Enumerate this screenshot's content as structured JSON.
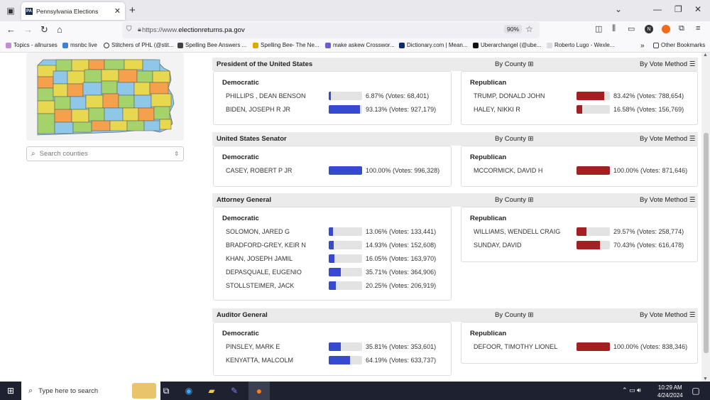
{
  "browser": {
    "tab_title": "Pennsylvania Elections",
    "url_prefix": "https://www.",
    "url_domain": "electionreturns.pa.gov",
    "zoom": "90%",
    "bookmarks": [
      "Topics - allnurses",
      "msnbc live",
      "Stitchers of PHL (@stit...",
      "Spelling Bee Answers ...",
      "Spelling Bee- The Ne...",
      "make askew Crosswor...",
      "Dictionary.com | Mean...",
      "Uberarchangel (@ube...",
      "Roberto Lugo - Wexle...",
      "Other Bookmarks"
    ]
  },
  "sidebar": {
    "search_placeholder": "Search counties"
  },
  "labels": {
    "by_county": "By County",
    "by_vote_method": "By Vote Method",
    "democratic": "Democratic",
    "republican": "Republican"
  },
  "races": [
    {
      "title": "President of the United States",
      "dem": [
        {
          "name": "PHILLIPS , DEAN BENSON",
          "pct": 6.87,
          "text": "6.87% (Votes: 68,401)"
        },
        {
          "name": "BIDEN, JOSEPH R JR",
          "pct": 93.13,
          "text": "93.13% (Votes: 927,179)"
        }
      ],
      "rep": [
        {
          "name": "TRUMP, DONALD JOHN",
          "pct": 83.42,
          "text": "83.42% (Votes: 788,654)"
        },
        {
          "name": "HALEY, NIKKI R",
          "pct": 16.58,
          "text": "16.58% (Votes: 156,769)"
        }
      ]
    },
    {
      "title": "United States Senator",
      "dem": [
        {
          "name": "CASEY, ROBERT P JR",
          "pct": 100,
          "text": "100.00% (Votes: 996,328)"
        }
      ],
      "rep": [
        {
          "name": "MCCORMICK, DAVID H",
          "pct": 100,
          "text": "100.00% (Votes: 871,646)"
        }
      ]
    },
    {
      "title": "Attorney General",
      "dem": [
        {
          "name": "SOLOMON, JARED G",
          "pct": 13.06,
          "text": "13.06% (Votes: 133,441)"
        },
        {
          "name": "BRADFORD-GREY, KEIR N",
          "pct": 14.93,
          "text": "14.93% (Votes: 152,608)"
        },
        {
          "name": "KHAN, JOSEPH JAMIL",
          "pct": 16.05,
          "text": "16.05% (Votes: 163,970)"
        },
        {
          "name": "DEPASQUALE, EUGENIO",
          "pct": 35.71,
          "text": "35.71% (Votes: 364,906)"
        },
        {
          "name": "STOLLSTEIMER, JACK",
          "pct": 20.25,
          "text": "20.25% (Votes: 206,919)"
        }
      ],
      "rep": [
        {
          "name": "WILLIAMS, WENDELL CRAIG",
          "pct": 29.57,
          "text": "29.57% (Votes: 258,774)"
        },
        {
          "name": "SUNDAY, DAVID",
          "pct": 70.43,
          "text": "70.43% (Votes: 616,478)"
        }
      ]
    },
    {
      "title": "Auditor General",
      "dem": [
        {
          "name": "PINSLEY, MARK E",
          "pct": 35.81,
          "text": "35.81% (Votes: 353,601)"
        },
        {
          "name": "KENYATTA, MALCOLM",
          "pct": 64.19,
          "text": "64.19% (Votes: 633,737)"
        }
      ],
      "rep": [
        {
          "name": "DEFOOR, TIMOTHY LIONEL",
          "pct": 100,
          "text": "100.00% (Votes: 838,346)"
        }
      ]
    }
  ],
  "colors": {
    "dem": "#3649d1",
    "rep": "#a31f22"
  },
  "taskbar": {
    "search_placeholder": "Type here to search",
    "time": "10:29 AM",
    "date": "4/24/2024"
  }
}
